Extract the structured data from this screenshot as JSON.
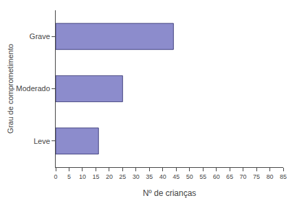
{
  "chart_data": {
    "type": "bar",
    "orientation": "horizontal",
    "categories": [
      "Grave",
      "Moderado",
      "Leve"
    ],
    "values": [
      44,
      25,
      16
    ],
    "color": "#8c8ccc",
    "xlabel": "Nº de crianças",
    "ylabel": "Grau de comprometimento",
    "xlim": [
      0,
      85
    ],
    "xticks": [
      0,
      5,
      10,
      15,
      20,
      25,
      30,
      35,
      40,
      45,
      50,
      55,
      60,
      65,
      70,
      75,
      80,
      85
    ],
    "grid": false
  }
}
